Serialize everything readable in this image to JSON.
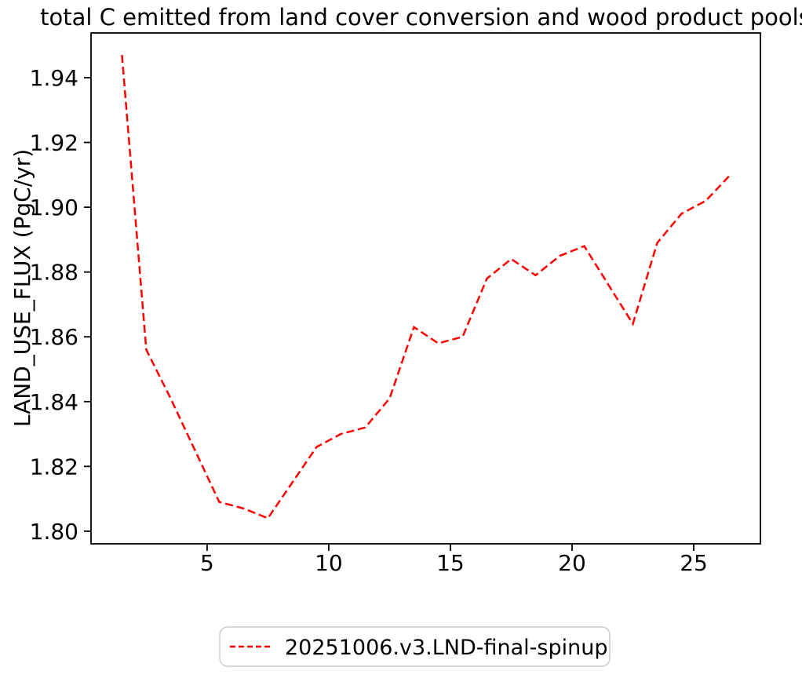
{
  "title": "total C emitted from land cover conversion and wood product pools",
  "ylabel": "LAND_USE_FLUX (PgC/yr)",
  "xlabel": "",
  "legend": {
    "label": "20251006.v3.LND-final-spinup",
    "sample_line_style": "dashed",
    "sample_line_color": "#ff0000"
  },
  "colors": {
    "line": "#ff0000",
    "axes": "#000000",
    "text": "#000000",
    "legend_border": "#cccccc",
    "background": "#ffffff"
  },
  "chart_data": {
    "type": "line",
    "title": "total C emitted from land cover conversion and wood product pools",
    "xlabel": "",
    "ylabel": "LAND_USE_FLUX (PgC/yr)",
    "grid": false,
    "legend_position": "below-axes-center",
    "xlim": [
      0.23,
      27.74
    ],
    "ylim": [
      1.7961,
      1.9538
    ],
    "xticks": [
      5,
      10,
      15,
      20,
      25
    ],
    "yticks": [
      1.8,
      1.82,
      1.84,
      1.86,
      1.88,
      1.9,
      1.92,
      1.94
    ],
    "series": [
      {
        "name": "20251006.v3.LND-final-spinup",
        "color": "#ff0000",
        "style": "dashed",
        "x": [
          1.5,
          2.5,
          3.5,
          4.5,
          5.5,
          6.5,
          7.5,
          8.5,
          9.5,
          10.5,
          11.5,
          12.5,
          13.5,
          14.5,
          15.5,
          16.5,
          17.5,
          18.5,
          19.5,
          20.5,
          21.5,
          22.5,
          23.5,
          24.5,
          25.5,
          26.5
        ],
        "y": [
          1.947,
          1.856,
          1.841,
          1.825,
          1.809,
          1.807,
          1.804,
          1.815,
          1.826,
          1.83,
          1.832,
          1.841,
          1.863,
          1.858,
          1.86,
          1.878,
          1.884,
          1.879,
          1.885,
          1.888,
          1.876,
          1.864,
          1.889,
          1.898,
          1.902,
          1.91
        ]
      }
    ]
  }
}
